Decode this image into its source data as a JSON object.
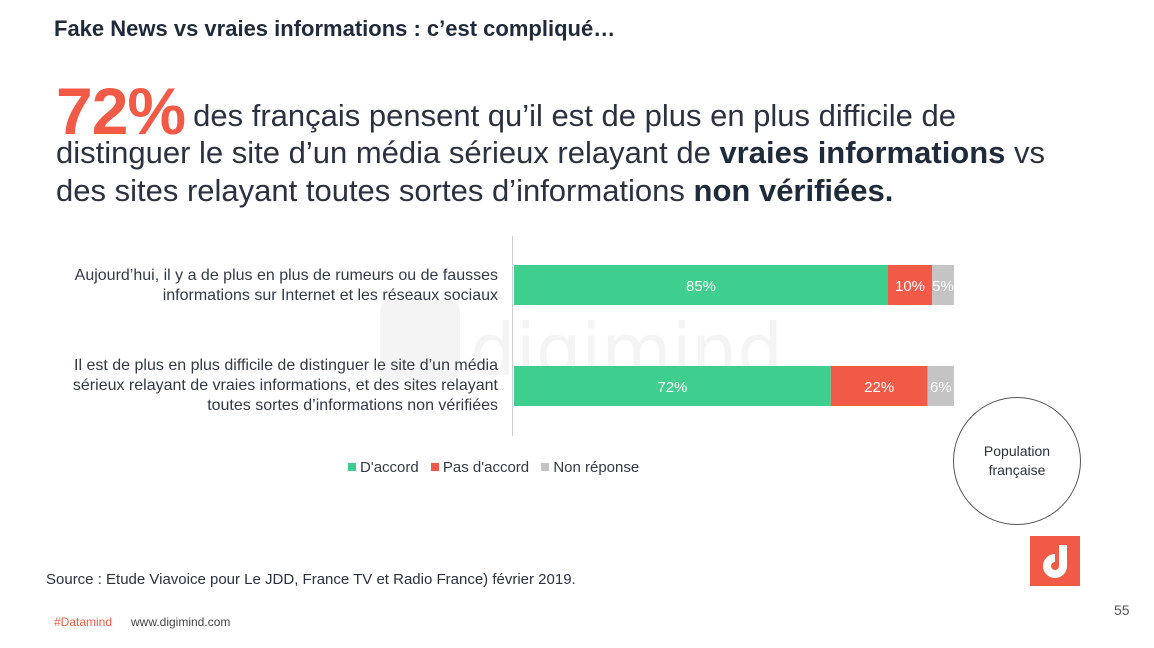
{
  "title": "Fake News vs vraies informations : c’est compliqué…",
  "headline": {
    "big_value": "72%",
    "line1": "des français pensent qu’il est de plus en plus difficile de",
    "line2_pre": "distinguer le site d’un média sérieux relayant de ",
    "line2_bold": "vraies informations",
    "line2_post": " vs",
    "line3_pre": "des sites relayant toutes sortes d’informations ",
    "line3_bold": "non vérifiées."
  },
  "watermark": {
    "text": "digimind"
  },
  "population_label": "Population française",
  "source": "Source : Etude Viavoice pour Le JDD, France TV et Radio France) février 2019.",
  "page_number": "55",
  "footer": {
    "tag": "#Datamind",
    "url": "www.digimind.com"
  },
  "colors": {
    "accord": "#3ecf8e",
    "pas_accord": "#f25a48",
    "non_reponse": "#c4c4c4",
    "brand": "#f25a48"
  },
  "chart_data": {
    "type": "bar",
    "orientation": "horizontal",
    "stacked": true,
    "title": "",
    "categories": [
      "Aujourd’hui, il y a de plus en plus de rumeurs ou de fausses informations sur Internet et les réseaux sociaux",
      "Il est de plus en plus difficile de distinguer le site d’un média sérieux relayant de vraies informations, et des sites relayant toutes sortes d’informations non vérifiées"
    ],
    "series": [
      {
        "name": "D'accord",
        "values": [
          85,
          72
        ],
        "labels": [
          "85%",
          "72%"
        ]
      },
      {
        "name": "Pas d'accord",
        "values": [
          10,
          22
        ],
        "labels": [
          "10%",
          "22%"
        ]
      },
      {
        "name": "Non réponse",
        "values": [
          5,
          6
        ],
        "labels": [
          "5%",
          "6%"
        ]
      }
    ],
    "xlim": [
      0,
      100
    ],
    "legend_position": "bottom"
  }
}
